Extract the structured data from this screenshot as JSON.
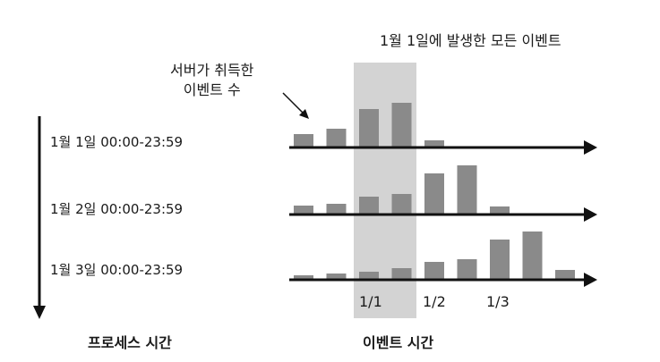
{
  "title": "1월 1일에 발생한 모든 이벤트",
  "annotation": {
    "line1": "서버가 취득한",
    "line2": "이벤트 수"
  },
  "rows": [
    {
      "label": "1월 1일 00:00-23:59",
      "values": [
        15,
        21,
        43,
        50,
        8,
        0,
        0,
        0
      ]
    },
    {
      "label": "1월 2일 00:00-23:59",
      "values": [
        10,
        12,
        20,
        23,
        46,
        55,
        9,
        0
      ]
    },
    {
      "label": "1월 3일 00:00-23:59",
      "values": [
        5,
        7,
        9,
        13,
        20,
        23,
        45,
        54,
        11
      ]
    }
  ],
  "ticks": [
    "1/1",
    "1/2",
    "1/3"
  ],
  "axis_titles": {
    "left": "프로세스 시간",
    "bottom": "이벤트 시간"
  },
  "colors": {
    "bar": "#8a8a8a",
    "highlight": "#d3d3d3",
    "axis": "#111111"
  }
}
